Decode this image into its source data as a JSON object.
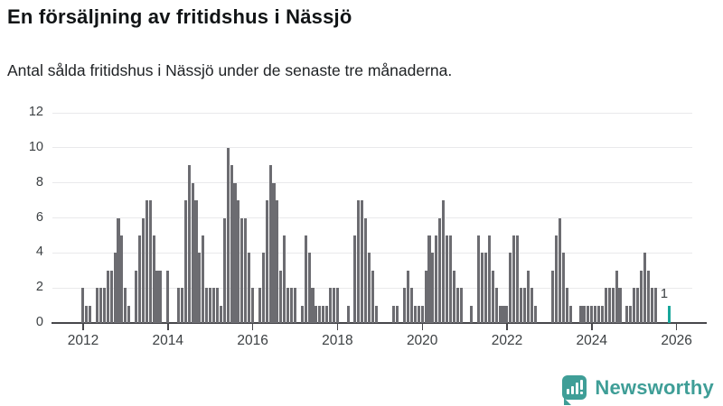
{
  "header": {
    "title": "En försäljning av fritidshus i Nässjö",
    "subtitle": "Antal sålda fritidshus i Nässjö under de senaste tre månaderna."
  },
  "colors": {
    "bar": "#6c6c71",
    "highlight": "#18a69a",
    "grid": "#e9e9eb",
    "axis": "#47474b",
    "tick_text": "#3c4043",
    "title_text": "#111416",
    "subtitle_text": "#202326",
    "logo_teal": "#3f9e97",
    "background": "#ffffff"
  },
  "chart_data": {
    "type": "bar",
    "title": "En försäljning av fritidshus i Nässjö",
    "subtitle": "Antal sålda fritidshus i Nässjö under de senaste tre månaderna.",
    "ylabel": "",
    "xlabel": "",
    "ylim": [
      0,
      12
    ],
    "y_ticks": [
      0,
      2,
      4,
      6,
      8,
      10,
      12
    ],
    "x_tick_labels": [
      "2012",
      "2014",
      "2016",
      "2018",
      "2020",
      "2022",
      "2024",
      "2026"
    ],
    "grid": "horizontal",
    "legend": "none",
    "bar_unit": "sålda fritidshus (rullande 3 månader)",
    "series": [
      {
        "year": 2012,
        "values": [
          2,
          1,
          1,
          0,
          2,
          2,
          2,
          3,
          3,
          4,
          6,
          5
        ]
      },
      {
        "year": 2013,
        "values": [
          2,
          1,
          0,
          3,
          5,
          6,
          7,
          7,
          5,
          3,
          3,
          0
        ]
      },
      {
        "year": 2014,
        "values": [
          3,
          0,
          0,
          2,
          2,
          7,
          9,
          8,
          7,
          4,
          5,
          2
        ]
      },
      {
        "year": 2015,
        "values": [
          2,
          2,
          2,
          1,
          6,
          10,
          9,
          8,
          7,
          6,
          6,
          4
        ]
      },
      {
        "year": 2016,
        "values": [
          2,
          0,
          2,
          4,
          7,
          9,
          8,
          7,
          3,
          5,
          2,
          2
        ]
      },
      {
        "year": 2017,
        "values": [
          2,
          0,
          1,
          5,
          4,
          2,
          1,
          1,
          1,
          1,
          2,
          2
        ]
      },
      {
        "year": 2018,
        "values": [
          2,
          0,
          0,
          1,
          0,
          5,
          7,
          7,
          6,
          4,
          3,
          1
        ]
      },
      {
        "year": 2019,
        "values": [
          0,
          0,
          0,
          0,
          1,
          1,
          0,
          2,
          3,
          2,
          1,
          1
        ]
      },
      {
        "year": 2020,
        "values": [
          1,
          3,
          5,
          4,
          5,
          6,
          7,
          5,
          5,
          3,
          2,
          2
        ]
      },
      {
        "year": 2021,
        "values": [
          0,
          0,
          1,
          0,
          5,
          4,
          4,
          5,
          3,
          2,
          1,
          1
        ]
      },
      {
        "year": 2022,
        "values": [
          1,
          4,
          5,
          5,
          2,
          2,
          3,
          2,
          1,
          0,
          0,
          0
        ]
      },
      {
        "year": 2023,
        "values": [
          0,
          3,
          5,
          6,
          4,
          2,
          1,
          0,
          0,
          1,
          1,
          1
        ]
      },
      {
        "year": 2024,
        "values": [
          1,
          1,
          1,
          1,
          2,
          2,
          2,
          3,
          2,
          0,
          1,
          1
        ]
      },
      {
        "year": 2025,
        "values": [
          2,
          2,
          3,
          4,
          3,
          2,
          2,
          0,
          0,
          0,
          1
        ]
      }
    ],
    "highlight": {
      "year": 2025,
      "month_index": 10,
      "value": 1,
      "label": "1"
    }
  },
  "logo": {
    "text": "Newsworthy",
    "icon": "newsworthy-pin-barchart-icon"
  }
}
